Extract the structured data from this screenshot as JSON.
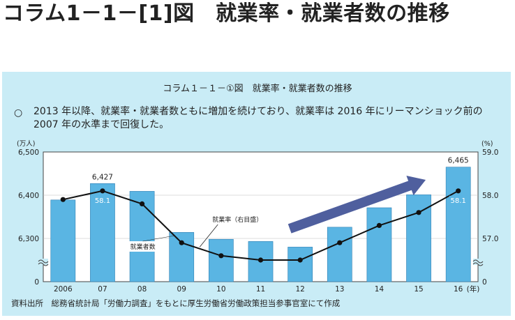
{
  "page": {
    "heading": "コラム1－1－[1]図　就業率・就業者数の推移"
  },
  "figure": {
    "title": "コラム１－１－①図　就業率・就業者数の推移",
    "summary_bullet": "○",
    "summary": "2013 年以降、就業率・就業者数ともに増加を続けており、就業率は 2016 年にリーマンショック前の 2007 年の水準まで回復した。",
    "source": "資料出所　総務省統計局「労働力調査」をもとに厚生労働省労働政策担当参事官室にて作成"
  },
  "chart_data": {
    "type": "bar",
    "categories": [
      "2006",
      "07",
      "08",
      "09",
      "10",
      "11",
      "12",
      "13",
      "14",
      "15",
      "16"
    ],
    "x_suffix": "(年)",
    "left_axis": {
      "unit": "(万人)",
      "ticks": [
        "6,500",
        "6,400",
        "6,300",
        "0"
      ],
      "range": [
        6250,
        6500
      ],
      "broken": true
    },
    "right_axis": {
      "unit": "(%)",
      "ticks": [
        "59.0",
        "58.0",
        "57.0",
        "0"
      ],
      "range": [
        56.2,
        59.0
      ],
      "broken": true
    },
    "series": [
      {
        "name": "就業者数",
        "type": "bar",
        "axis": "left",
        "values": [
          6389,
          6427,
          6409,
          6314,
          6298,
          6293,
          6280,
          6326,
          6371,
          6401,
          6465
        ],
        "color": "#5ab5e3"
      },
      {
        "name": "就業率（右目盛）",
        "type": "line",
        "axis": "right",
        "values": [
          57.9,
          58.1,
          57.8,
          56.9,
          56.6,
          56.5,
          56.5,
          56.9,
          57.3,
          57.6,
          58.1
        ],
        "color": "#111111"
      }
    ],
    "data_labels": [
      {
        "category": "07",
        "series": "就業者数",
        "text": "6,427"
      },
      {
        "category": "07",
        "series": "就業率（右目盛）",
        "text": "58.1"
      },
      {
        "category": "16",
        "series": "就業者数",
        "text": "6,465"
      },
      {
        "category": "16",
        "series": "就業率（右目盛）",
        "text": "58.1"
      }
    ],
    "annotations": [
      "就業者数",
      "就業率（右目盛）"
    ],
    "trend_arrow_color": "#4f5f9e"
  }
}
